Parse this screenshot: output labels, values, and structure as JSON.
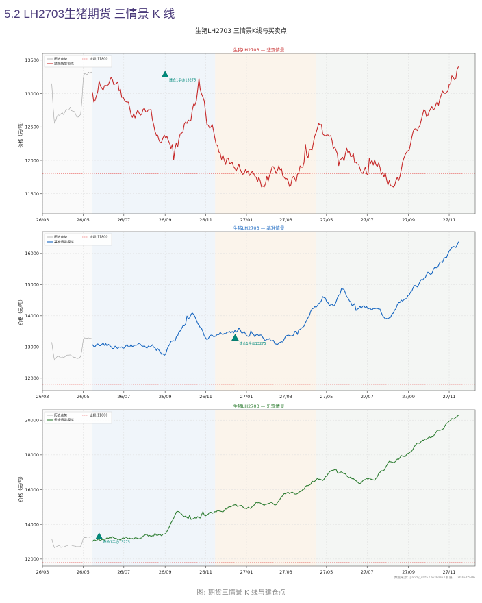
{
  "page": {
    "heading": "5.2 LH2703生猪期货 三情景 K 线",
    "figure_title": "生猪LH2703  三情景K线与买卖点",
    "caption": "图: 期货三情景 K 线与建仓点",
    "source": "数据来源：pandy_data / akshare / 扩展 ｜ 2026-05-06"
  },
  "chart_data": [
    {
      "type": "line",
      "title": "生猪LH2703 — 悲观情景",
      "title_color": "#c62828",
      "xlabel": "",
      "ylabel": "价格（元/吨）",
      "x_ticks": [
        "26/03",
        "26/05",
        "26/07",
        "26/09",
        "26/11",
        "27/01",
        "27/03",
        "27/05",
        "27/07",
        "27/09",
        "27/11"
      ],
      "ylim": [
        11200,
        13600
      ],
      "y_ticks": [
        11500,
        12000,
        12500,
        13000,
        13500
      ],
      "grid": true,
      "legend_position": "top-left",
      "legend": [
        "历史走势",
        "悲观情景模拟",
        "止损 11800"
      ],
      "stop_loss": 11800,
      "series": [
        {
          "name": "历史走势",
          "color": "#9e9e9e",
          "x_start": "2026-03-15",
          "x_end": "2026-05-15",
          "anchors": [
            [
              0,
              13180
            ],
            [
              0.06,
              12580
            ],
            [
              0.15,
              12720
            ],
            [
              0.3,
              12690
            ],
            [
              0.45,
              12800
            ],
            [
              0.6,
              12650
            ],
            [
              0.72,
              12700
            ],
            [
              0.78,
              13280
            ],
            [
              1,
              13300
            ]
          ],
          "noise": 60,
          "seed": 1
        },
        {
          "name": "悲观情景模拟",
          "color": "#c62828",
          "x_start": "2026-05-15",
          "x_end": "2027-11-15",
          "anchors": [
            [
              0,
              12960
            ],
            [
              0.05,
              13050
            ],
            [
              0.1,
              12780
            ],
            [
              0.15,
              12620
            ],
            [
              0.19,
              12150
            ],
            [
              0.24,
              12350
            ],
            [
              0.285,
              12950
            ],
            [
              0.29,
              13270
            ],
            [
              0.32,
              12400
            ],
            [
              0.38,
              12050
            ],
            [
              0.43,
              11980
            ],
            [
              0.47,
              11700
            ],
            [
              0.51,
              11800
            ],
            [
              0.54,
              11500
            ],
            [
              0.58,
              11950
            ],
            [
              0.62,
              12400
            ],
            [
              0.66,
              12050
            ],
            [
              0.7,
              12200
            ],
            [
              0.74,
              11700
            ],
            [
              0.78,
              11900
            ],
            [
              0.82,
              11600
            ],
            [
              0.86,
              12050
            ],
            [
              0.9,
              12450
            ],
            [
              0.95,
              12900
            ],
            [
              1,
              13400
            ]
          ],
          "noise": 180,
          "seed": 7
        }
      ],
      "signals": [
        {
          "x": "2026-09-01",
          "y": 13275,
          "label": "建仓1手@13275"
        }
      ]
    },
    {
      "type": "line",
      "title": "生猪LH2703 — 基准情景",
      "title_color": "#1565c0",
      "xlabel": "",
      "ylabel": "价格（元/吨）",
      "x_ticks": [
        "26/03",
        "26/05",
        "26/07",
        "26/09",
        "26/11",
        "27/01",
        "27/03",
        "27/05",
        "27/07",
        "27/09",
        "27/11"
      ],
      "ylim": [
        11600,
        16700
      ],
      "y_ticks": [
        12000,
        13000,
        14000,
        15000,
        16000
      ],
      "grid": true,
      "legend_position": "top-left",
      "legend": [
        "历史走势",
        "基准情景模拟",
        "止损 11800"
      ],
      "stop_loss": 11800,
      "series": [
        {
          "name": "历史走势",
          "color": "#9e9e9e",
          "x_start": "2026-03-15",
          "x_end": "2026-05-15",
          "anchors": [
            [
              0,
              13180
            ],
            [
              0.06,
              12600
            ],
            [
              0.15,
              12720
            ],
            [
              0.3,
              12690
            ],
            [
              0.45,
              12800
            ],
            [
              0.6,
              12660
            ],
            [
              0.72,
              12700
            ],
            [
              0.78,
              13280
            ],
            [
              1,
              13300
            ]
          ],
          "noise": 55,
          "seed": 2
        },
        {
          "name": "基准情景模拟",
          "color": "#1565c0",
          "x_start": "2026-05-15",
          "x_end": "2027-11-15",
          "anchors": [
            [
              0,
              13150
            ],
            [
              0.08,
              12980
            ],
            [
              0.16,
              13150
            ],
            [
              0.2,
              12850
            ],
            [
              0.25,
              13650
            ],
            [
              0.27,
              14100
            ],
            [
              0.31,
              13300
            ],
            [
              0.36,
              13400
            ],
            [
              0.4,
              13550
            ],
            [
              0.43,
              13320
            ],
            [
              0.47,
              13350
            ],
            [
              0.5,
              13050
            ],
            [
              0.53,
              13350
            ],
            [
              0.57,
              13750
            ],
            [
              0.6,
              14200
            ],
            [
              0.63,
              14600
            ],
            [
              0.66,
              14250
            ],
            [
              0.68,
              14850
            ],
            [
              0.72,
              14200
            ],
            [
              0.76,
              14250
            ],
            [
              0.8,
              13950
            ],
            [
              0.84,
              14400
            ],
            [
              0.88,
              14900
            ],
            [
              0.92,
              15300
            ],
            [
              0.95,
              15700
            ],
            [
              1,
              16350
            ]
          ],
          "noise": 150,
          "seed": 11
        }
      ],
      "signals": [
        {
          "x": "2026-12-15",
          "y": 13275,
          "label": "建仓1手@13275"
        }
      ]
    },
    {
      "type": "line",
      "title": "生猪LH2703 — 乐观情景",
      "title_color": "#2e7d32",
      "xlabel": "",
      "ylabel": "价格（元/吨）",
      "x_ticks": [
        "26/03",
        "26/05",
        "26/07",
        "26/09",
        "26/11",
        "27/01",
        "27/03",
        "27/05",
        "27/07",
        "27/09",
        "27/11"
      ],
      "ylim": [
        11600,
        20600
      ],
      "y_ticks": [
        12000,
        14000,
        16000,
        18000,
        20000
      ],
      "grid": true,
      "legend_position": "top-left",
      "legend": [
        "历史走势",
        "乐观情景模拟",
        "止损 11800"
      ],
      "stop_loss": 11800,
      "series": [
        {
          "name": "历史走势",
          "color": "#9e9e9e",
          "x_start": "2026-03-15",
          "x_end": "2026-05-15",
          "anchors": [
            [
              0,
              13200
            ],
            [
              0.06,
              12620
            ],
            [
              0.15,
              12760
            ],
            [
              0.3,
              12700
            ],
            [
              0.45,
              12820
            ],
            [
              0.6,
              12680
            ],
            [
              0.72,
              12720
            ],
            [
              0.78,
              13280
            ],
            [
              1,
              13300
            ]
          ],
          "noise": 60,
          "seed": 3
        },
        {
          "name": "乐观情景模拟",
          "color": "#2e7d32",
          "x_start": "2026-05-15",
          "x_end": "2027-11-15",
          "anchors": [
            [
              0,
              13100
            ],
            [
              0.08,
              13200
            ],
            [
              0.16,
              13400
            ],
            [
              0.2,
              13450
            ],
            [
              0.23,
              14650
            ],
            [
              0.27,
              14300
            ],
            [
              0.33,
              14700
            ],
            [
              0.38,
              15050
            ],
            [
              0.42,
              15000
            ],
            [
              0.46,
              15250
            ],
            [
              0.5,
              15200
            ],
            [
              0.53,
              15700
            ],
            [
              0.57,
              15800
            ],
            [
              0.6,
              16500
            ],
            [
              0.63,
              16600
            ],
            [
              0.66,
              17100
            ],
            [
              0.69,
              16800
            ],
            [
              0.73,
              16500
            ],
            [
              0.77,
              16700
            ],
            [
              0.81,
              17500
            ],
            [
              0.86,
              18100
            ],
            [
              0.9,
              18800
            ],
            [
              0.94,
              19200
            ],
            [
              0.97,
              19800
            ],
            [
              1,
              20250
            ]
          ],
          "noise": 170,
          "seed": 17
        }
      ],
      "signals": [
        {
          "x": "2026-05-25",
          "y": 13275,
          "label": "建仓1手@13275"
        }
      ]
    }
  ]
}
